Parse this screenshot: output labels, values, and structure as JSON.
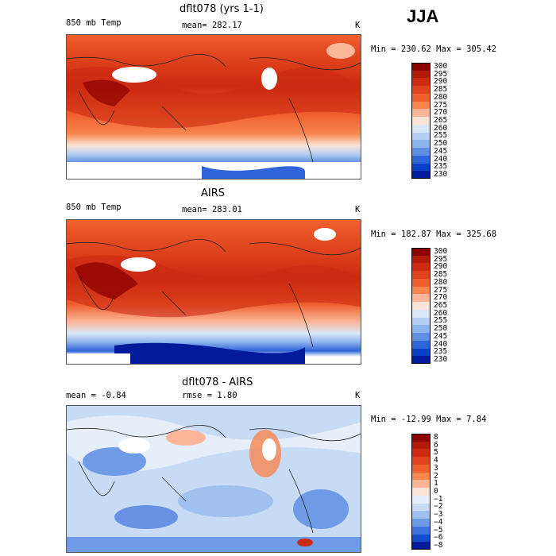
{
  "season": "JJA",
  "panels": [
    {
      "title": "dflt078 (yrs 1-1)",
      "left_label": "850 mb Temp",
      "center_label": "mean=  282.17",
      "units": "K",
      "minmax": "Min = 230.62 Max = 305.42",
      "colorbar": {
        "levels": [
          "300",
          "295",
          "290",
          "285",
          "280",
          "275",
          "270",
          "265",
          "260",
          "255",
          "250",
          "245",
          "240",
          "235",
          "230"
        ],
        "colors": [
          "#8b0000",
          "#b21a0a",
          "#cc2a12",
          "#e0441e",
          "#f0602e",
          "#f7864f",
          "#fbb69a",
          "#fbe3d7",
          "#d8e8f7",
          "#b4cff2",
          "#8cb3ec",
          "#5f8ee2",
          "#2f65d8",
          "#0a3fc8",
          "#001a9c"
        ]
      }
    },
    {
      "title": "AIRS",
      "left_label": "850 mb Temp",
      "center_label": "mean=  283.01",
      "units": "K",
      "minmax": "Min = 182.87 Max = 325.68",
      "colorbar": {
        "levels": [
          "300",
          "295",
          "290",
          "285",
          "280",
          "275",
          "270",
          "265",
          "260",
          "255",
          "250",
          "245",
          "240",
          "235",
          "230"
        ],
        "colors": [
          "#8b0000",
          "#b21a0a",
          "#cc2a12",
          "#e0441e",
          "#f0602e",
          "#f7864f",
          "#fbb69a",
          "#fbe3d7",
          "#d8e8f7",
          "#b4cff2",
          "#8cb3ec",
          "#5f8ee2",
          "#2f65d8",
          "#0a3fc8",
          "#001a9c"
        ]
      }
    },
    {
      "title": "dflt078 - AIRS",
      "left_label": "mean =  -0.84",
      "center_label": "rmse =   1.80",
      "units": "K",
      "minmax": "Min = -12.99 Max =   7.84",
      "colorbar": {
        "levels": [
          "8",
          "6",
          "5",
          "4",
          "3",
          "2",
          "1",
          "0",
          "−1",
          "−2",
          "−3",
          "−4",
          "−5",
          "−6",
          "−8"
        ],
        "colors": [
          "#8b0000",
          "#b21a0a",
          "#cc2a12",
          "#e0441e",
          "#f0602e",
          "#f7864f",
          "#fbb69a",
          "#fbe3d7",
          "#e6eefa",
          "#c8dbf5",
          "#a0c0ef",
          "#6f9be6",
          "#3f72dc",
          "#154cce",
          "#001a9c"
        ]
      }
    }
  ]
}
